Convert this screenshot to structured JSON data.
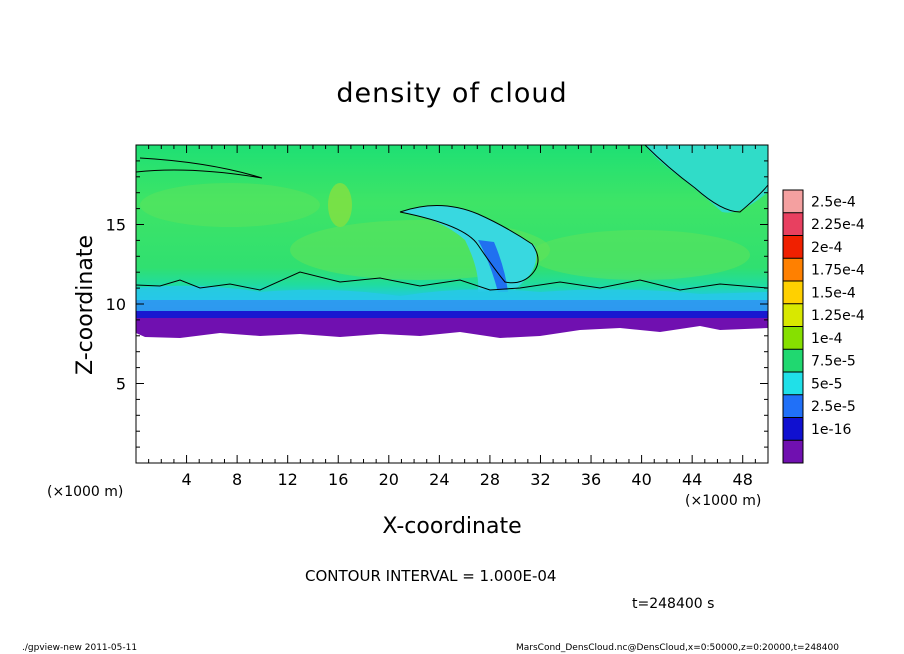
{
  "chart_data": {
    "type": "heatmap",
    "title": "density of cloud",
    "xlabel": "X-coordinate",
    "ylabel": "Z-coordinate",
    "x_unit": "(×1000 m)",
    "x_ticks": [
      4,
      8,
      12,
      16,
      20,
      24,
      28,
      32,
      36,
      40,
      44,
      48
    ],
    "y_ticks": [
      5,
      10,
      15
    ],
    "xlim": [
      0,
      50
    ],
    "ylim": [
      0,
      20
    ],
    "colorbar": {
      "labels": [
        "2.5e-4",
        "2.25e-4",
        "2e-4",
        "1.75e-4",
        "1.5e-4",
        "1.25e-4",
        "1e-4",
        "7.5e-5",
        "5e-5",
        "2.5e-5",
        "1e-16"
      ],
      "colors": [
        "#f4a0a0",
        "#e84060",
        "#f02000",
        "#ff8000",
        "#ffd000",
        "#d8e800",
        "#86e000",
        "#20d870",
        "#20e0e8",
        "#2070f8",
        "#1010d0",
        "#7010b0"
      ]
    },
    "contour_interval": "CONTOUR INTERVAL = 1.000E-04",
    "time": "t=248400 s"
  },
  "footer": {
    "left": "./gpview-new   2011-05-11",
    "right": "MarsCond_DensCloud.nc@DensCloud,x=0:50000,z=0:20000,t=248400"
  }
}
